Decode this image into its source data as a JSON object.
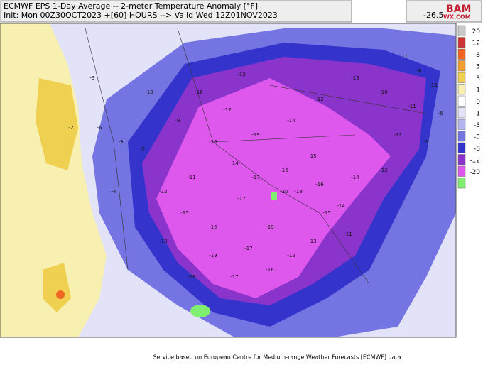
{
  "header": {
    "title": "ECMWF EPS 1-Day Average -- 2-meter Temperature Anomaly [°F]",
    "subtitle": "Init: Mon 00Z30OCT2023 +[60] HOURS --> Valid Wed 12Z01NOV2023",
    "min_value": -26.5,
    "logo": "WX.COM"
  },
  "legend": {
    "items": [
      {
        "label": "20",
        "color": "#c8c8c8"
      },
      {
        "label": "12",
        "color": "#cc3333"
      },
      {
        "label": "8",
        "color": "#ee6622"
      },
      {
        "label": "5",
        "color": "#f0a030"
      },
      {
        "label": "3",
        "color": "#f0d050"
      },
      {
        "label": "1",
        "color": "#f8f0b0"
      },
      {
        "label": "0",
        "color": "#ffffff"
      },
      {
        "label": "-1",
        "color": "#e2e2f8"
      },
      {
        "label": "-3",
        "color": "#b4b4ee"
      },
      {
        "label": "-5",
        "color": "#7474e2"
      },
      {
        "label": "-8",
        "color": "#3434cc"
      },
      {
        "label": "-12",
        "color": "#8a34cc"
      },
      {
        "label": "-20",
        "color": "#de58ee"
      },
      {
        "label": null,
        "color": "#80ee70"
      }
    ]
  },
  "map_labels": [
    -13,
    -16,
    -17,
    -19,
    -14,
    -12,
    -13,
    -10,
    -11,
    -12,
    -16,
    -14,
    -17,
    -16,
    -15,
    -18,
    -17,
    -19,
    -16,
    -15,
    -18,
    -20,
    -16,
    -14,
    -17,
    -19,
    -18,
    -17,
    -16,
    -12,
    -13,
    -11,
    -15,
    -14,
    -12,
    -9,
    -10,
    -8,
    -7,
    -6,
    -5,
    -8,
    -11,
    -12,
    -10,
    -9,
    -4,
    -6,
    -3,
    -2
  ],
  "footer": "Service based on European Centre for Medium-range Weather Forecasts [ECMWF] data"
}
